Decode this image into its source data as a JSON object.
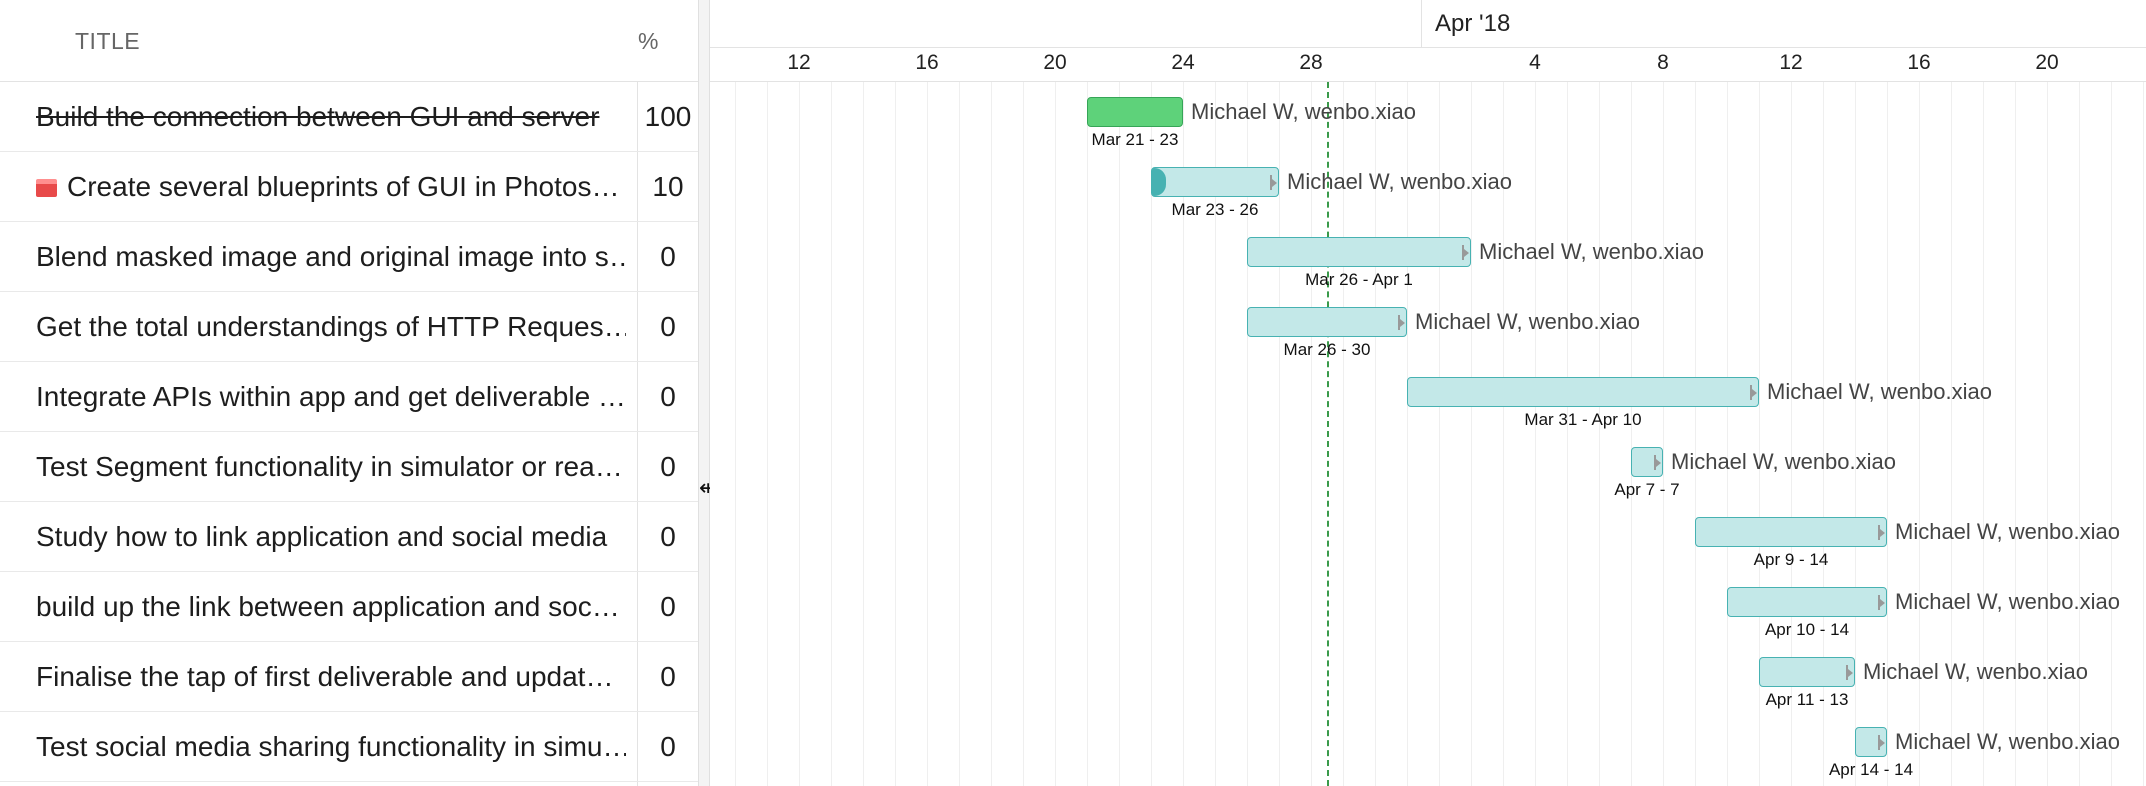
{
  "grid": {
    "headers": {
      "title": "TITLE",
      "percent": "%"
    },
    "rows": [
      {
        "title": "Build the connection between GUI and server",
        "percent": "100",
        "done": true,
        "icon": ""
      },
      {
        "title": "Create several blueprints of GUI in Photos…",
        "percent": "10",
        "done": false,
        "icon": "calendar-icon"
      },
      {
        "title": "Blend masked image and original image into s…",
        "percent": "0",
        "done": false,
        "icon": ""
      },
      {
        "title": "Get the total understandings of HTTP Reques…",
        "percent": "0",
        "done": false,
        "icon": ""
      },
      {
        "title": "Integrate APIs within app and get deliverable …",
        "percent": "0",
        "done": false,
        "icon": ""
      },
      {
        "title": "Test Segment functionality in simulator or rea…",
        "percent": "0",
        "done": false,
        "icon": ""
      },
      {
        "title": "Study how to link application and social media",
        "percent": "0",
        "done": false,
        "icon": ""
      },
      {
        "title": "build up the link between application and soc…",
        "percent": "0",
        "done": false,
        "icon": ""
      },
      {
        "title": "Finalise the tap of first deliverable and updat…",
        "percent": "0",
        "done": false,
        "icon": ""
      },
      {
        "title": "Test social media sharing functionality in simu…",
        "percent": "0",
        "done": false,
        "icon": ""
      }
    ]
  },
  "timeline": {
    "month_label": "Apr '18",
    "ticks": [
      "12",
      "16",
      "20",
      "24",
      "28",
      "4",
      "8",
      "12",
      "16",
      "20"
    ],
    "today": "2018-03-28",
    "tasks": [
      {
        "start": "2018-03-21",
        "end": "2018-03-23",
        "progress": 100,
        "assignee": "Michael W, wenbo.xiao",
        "range": "Mar 21 - 23"
      },
      {
        "start": "2018-03-23",
        "end": "2018-03-26",
        "progress": 10,
        "assignee": "Michael W, wenbo.xiao",
        "range": "Mar 23 - 26"
      },
      {
        "start": "2018-03-26",
        "end": "2018-04-01",
        "progress": 0,
        "assignee": "Michael W, wenbo.xiao",
        "range": "Mar 26 - Apr 1"
      },
      {
        "start": "2018-03-26",
        "end": "2018-03-30",
        "progress": 0,
        "assignee": "Michael W, wenbo.xiao",
        "range": "Mar 26 - 30"
      },
      {
        "start": "2018-03-31",
        "end": "2018-04-10",
        "progress": 0,
        "assignee": "Michael W, wenbo.xiao",
        "range": "Mar 31 - Apr 10"
      },
      {
        "start": "2018-04-07",
        "end": "2018-04-07",
        "progress": 0,
        "assignee": "Michael W, wenbo.xiao",
        "range": "Apr 7 - 7"
      },
      {
        "start": "2018-04-09",
        "end": "2018-04-14",
        "progress": 0,
        "assignee": "Michael W, wenbo.xiao",
        "range": "Apr 9 - 14"
      },
      {
        "start": "2018-04-10",
        "end": "2018-04-14",
        "progress": 0,
        "assignee": "Michael W, wenbo.xiao",
        "range": "Apr 10 - 14"
      },
      {
        "start": "2018-04-11",
        "end": "2018-04-13",
        "progress": 0,
        "assignee": "Michael W, wenbo.xiao",
        "range": "Apr 11 - 13"
      },
      {
        "start": "2018-04-14",
        "end": "2018-04-14",
        "progress": 0,
        "assignee": "Michael W, wenbo.xiao",
        "range": "Apr 14 - 14"
      }
    ]
  },
  "colors": {
    "done_bar": "#5ed27a",
    "task_bar": "#c3e8e8",
    "task_border": "#47b2b2",
    "today_line": "#3a9a4a",
    "calendar_icon": "#e84a4a"
  }
}
